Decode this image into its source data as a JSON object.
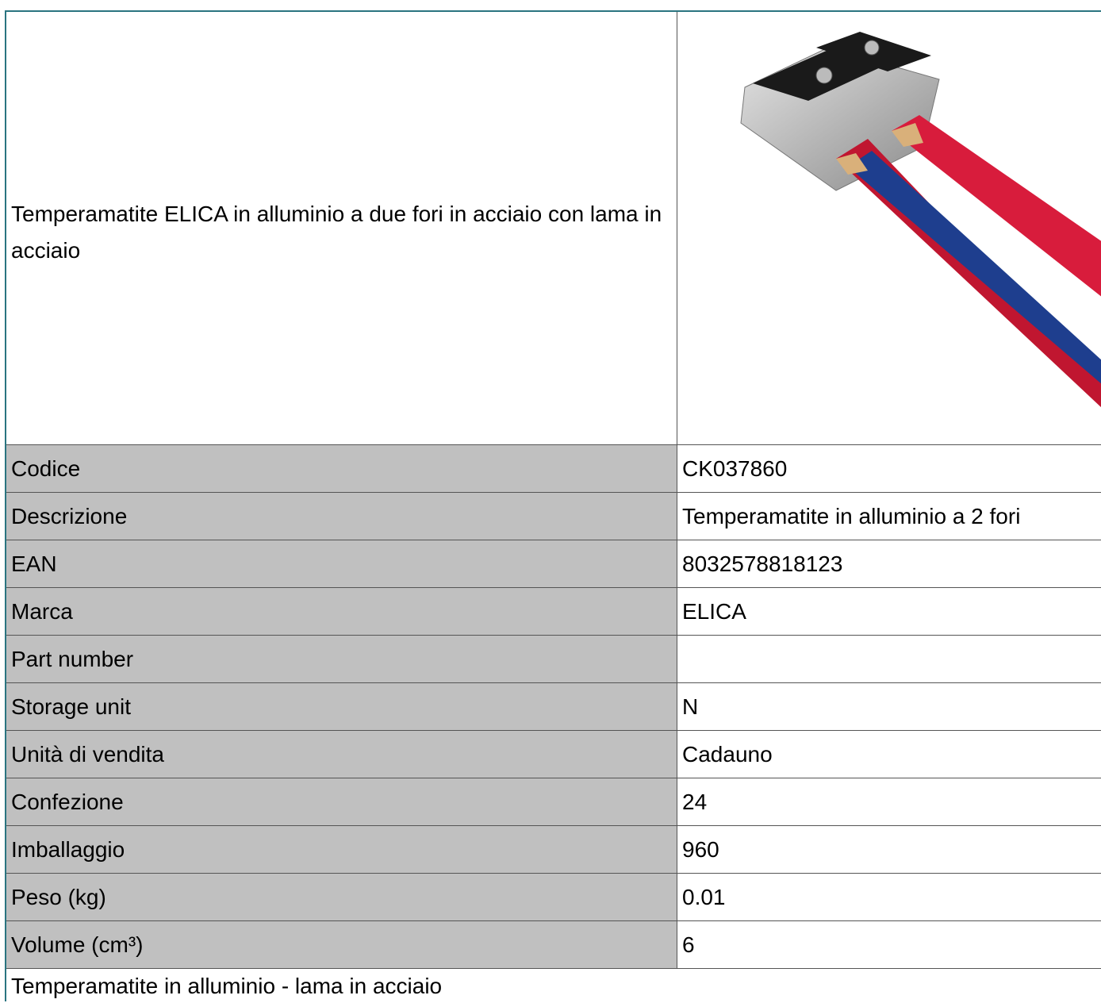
{
  "header": {
    "title": "Temperamatite ELICA in alluminio a due fori in acciaio con lama in acciaio"
  },
  "specs": [
    {
      "label": "Codice",
      "value": "CK037860"
    },
    {
      "label": "Descrizione",
      "value": "Temperamatite in alluminio a 2 fori"
    },
    {
      "label": "EAN",
      "value": "8032578818123"
    },
    {
      "label": "Marca",
      "value": "ELICA"
    },
    {
      "label": "Part number"
    },
    {
      "label": "Storage unit",
      "value": "N"
    },
    {
      "label": "Unità di vendita",
      "value": "Cadauno"
    },
    {
      "label": "Confezione",
      "value": "24"
    },
    {
      "label": "Imballaggio",
      "value": "960"
    },
    {
      "label": "Peso (kg)",
      "value": "0.01"
    },
    {
      "label": "Volume (cm³)",
      "value": "6"
    }
  ],
  "footer": {
    "note": "Temperamatite in alluminio - lama in acciaio"
  }
}
